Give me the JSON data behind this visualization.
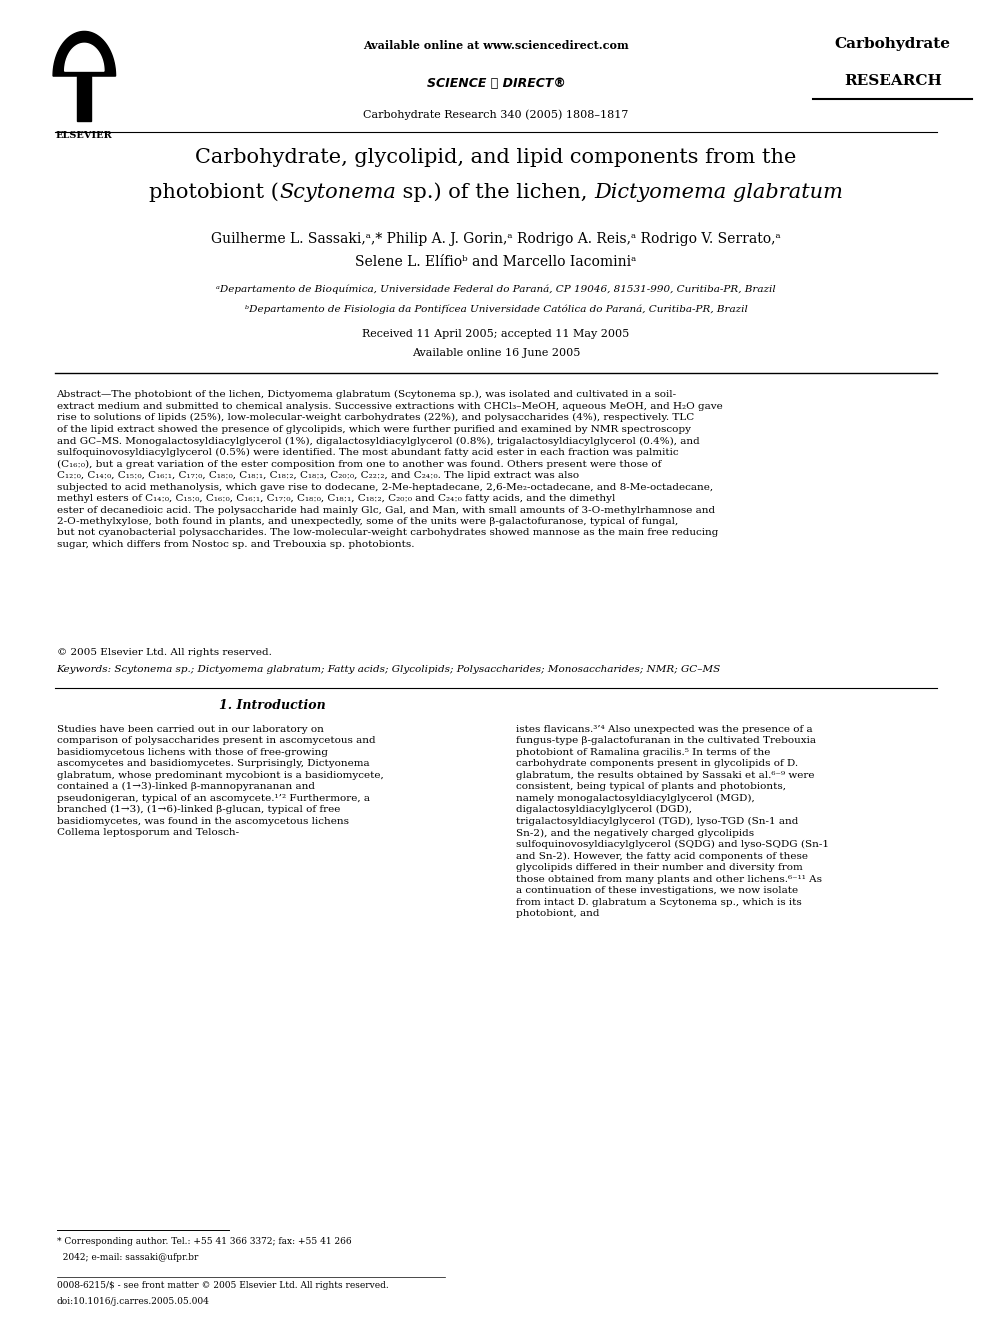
{
  "bg_color": "#ffffff",
  "page_width": 9.92,
  "page_height": 13.23,
  "header": {
    "available_online": "Available online at www.sciencedirect.com",
    "sciencedirect_logo": "SCIENCE ⓐ DIRECT®",
    "journal_line": "Carbohydrate Research 340 (2005) 1808–1817",
    "journal_name_line1": "Carbohydrate",
    "journal_name_line2": "RESEARCH"
  },
  "title": {
    "line1": "Carbohydrate, glycolipid, and lipid components from the",
    "line2_normal": "photobiont (",
    "line2_italic": "Scytonema",
    "line2_end": " sp.) of the lichen, ",
    "line2_italic2": "Dictyomema glabratum"
  },
  "authors": "Guilherme L. Sassaki,ᵃ,* Philip A. J. Gorin,ᵃ Rodrigo A. Reis,ᵃ Rodrigo V. Serrato,ᵃ",
  "authors2": "Selene L. Elífioᵇ and Marcello Iacominiᵃ",
  "affil_a": "ᵃDepartamento de Bioquímica, Universidade Federal do Paraná, CP 19046, 81531-990, Curitiba-PR, Brazil",
  "affil_b": "ᵇDepartamento de Fisiologia da Pontifícea Universidade Católica do Paraná, Curitiba-PR, Brazil",
  "received": "Received 11 April 2005; accepted 11 May 2005",
  "available": "Available online 16 June 2005",
  "abstract_label": "Abstract",
  "abstract_text": "The photobiont of the lichen, Dictyomema glabratum (Scytonema sp.), was isolated and cultivated in a soil-extract medium and submitted to chemical analysis. Successive extractions with CHCl₃–MeOH, aqueous MeOH, and H₂O gave rise to solutions of lipids (25%), low-molecular-weight carbohydrates (22%), and polysaccharides (4%), respectively. TLC of the lipid extract showed the presence of glycolipids, which were further purified and examined by NMR spectroscopy and GC–MS. Monogalactosyldiacylglycerol (1%), digalactosyldiacylglycerol (0.8%), trigalactosyldiacylglycerol (0.4%), and sulfoquinovosyldiacylglycerol (0.5%) were identified. The most abundant fatty acid ester in each fraction was palmitic (C₁₆ː₀), but a great variation of the ester composition from one to another was found. Others present were those of C₁₂ː₀, C₁₄ː₀, C₁₅ː₀, C₁₆ː₁, C₁₇ː₀, C₁₈ː₀, C₁₈ː₁, C₁₈ː₂, C₁₈ː₃, C₂₀ː₀, C₂₂ː₂, and C₂₄ː₀. The lipid extract was also subjected to acid methanolysis, which gave rise to dodecane, 2-Me-heptadecane, 2,6-Me₂-octadecane, and 8-Me-octadecane, methyl esters of C₁₄ː₀, C₁₅ː₀, C₁₆ː₀, C₁₆ː₁, C₁₇ː₀, C₁₈ː₀, C₁₈ː₁, C₁₈ː₂, C₂₀ː₀ and C₂₄ː₀ fatty acids, and the dimethyl ester of decanedioic acid. The polysaccharide had mainly Glc, Gal, and Man, with small amounts of 3-O-methylrhamnose and 2-O-methylxylose, both found in plants, and unexpectedly, some of the units were β-galactofuranose, typical of fungal, but not cyanobacterial polysaccharides. The low-molecular-weight carbohydrates showed mannose as the main free reducing sugar, which differs from Nostoc sp. and Trebouxia sp. photobionts.",
  "copyright": "© 2005 Elsevier Ltd. All rights reserved.",
  "keywords": "Keywords: Scytonema sp.; Dictyomema glabratum; Fatty acids; Glycolipids; Polysaccharides; Monosaccharides; NMR; GC–MS",
  "section1_title": "1. Introduction",
  "col1_text": "Studies have been carried out in our laboratory on comparison of polysaccharides present in ascomycetous and basidiomycetous lichens with those of free-growing ascomycetes and basidiomycetes. Surprisingly, Dictyonema glabratum, whose predominant mycobiont is a basidiomycete, contained a (1→3)-linked β-mannopyrananan and pseudonigeran, typical of an ascomycete.¹’² Furthermore, a branched (1→3), (1→6)-linked β-glucan, typical of free basidiomycetes, was found in the ascomycetous lichens Collema leptosporum and Telosch-",
  "col1_footnote1": "* Corresponding author. Tel.: +55 41 366 3372; fax: +55 41 266",
  "col1_footnote2": "  2042; e-mail: sassaki@ufpr.br",
  "col1_bottom1": "0008-6215/$ - see front matter © 2005 Elsevier Ltd. All rights reserved.",
  "col1_bottom2": "doi:10.1016/j.carres.2005.05.004",
  "col2_text": "istes flavicans.³’⁴ Also unexpected was the presence of a fungus-type β-galactofuranan in the cultivated Trebouxia photobiont of Ramalina gracilis.⁵ In terms of the carbohydrate components present in glycolipids of D. glabratum, the results obtained by Sassaki et al.⁶⁻⁹ were consistent, being typical of plants and photobionts, namely monogalactosyldiacylglycerol (MGD), digalactosyldiacylglycerol (DGD), trigalactosyldiacylglycerol (TGD), lyso-TGD (Sn-1 and Sn-2), and the negatively charged glycolipids sulfoquinovosyldiacylglycerol (SQDG) and lyso-SQDG (Sn-1 and Sn-2). However, the fatty acid components of these glycolipids differed in their number and diversity from those obtained from many plants and other lichens.⁶⁻¹¹ As a continuation of these investigations, we now isolate from intact D. glabratum a Scytonema sp., which is its photobiont, and"
}
